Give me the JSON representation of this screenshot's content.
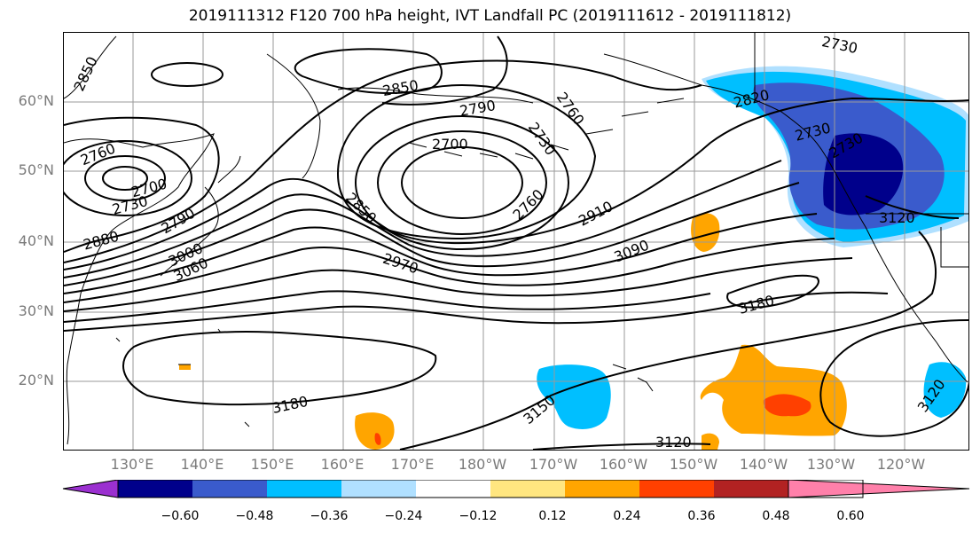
{
  "title": "2019111312 F120 700 hPa height, IVT Landfall PC (2019111612 - 2019111812)",
  "lat_labels": [
    "60°N",
    "50°N",
    "40°N",
    "30°N",
    "20°N"
  ],
  "lon_labels": [
    "130°E",
    "140°E",
    "150°E",
    "160°E",
    "170°E",
    "180°W",
    "170°W",
    "160°W",
    "150°W",
    "140°W",
    "130°W",
    "120°W"
  ],
  "colorbar": {
    "ticks": [
      "−0.60",
      "−0.48",
      "−0.36",
      "−0.24",
      "−0.12",
      "0.12",
      "0.24",
      "0.36",
      "0.48",
      "0.60"
    ],
    "colors": [
      "#9b30d0",
      "#00008b",
      "#3a5bcc",
      "#00bfff",
      "#b0e0ff",
      "#ffffff",
      "#ffe680",
      "#ffa500",
      "#ff4000",
      "#b22222",
      "#ff80aa"
    ]
  },
  "contour_labels": [
    "2850",
    "2850",
    "2790",
    "2760",
    "2730",
    "2700",
    "2760",
    "2730",
    "2700",
    "2730",
    "2760",
    "2880",
    "2790",
    "2850",
    "3000",
    "3060",
    "2970",
    "2910",
    "3090",
    "2730",
    "2820",
    "2730",
    "3180",
    "3180",
    "3150",
    "3120",
    "3120",
    "3120"
  ],
  "chart_data": {
    "type": "map",
    "variable": "700 hPa height",
    "shading": "IVT Landfall PC"
  }
}
